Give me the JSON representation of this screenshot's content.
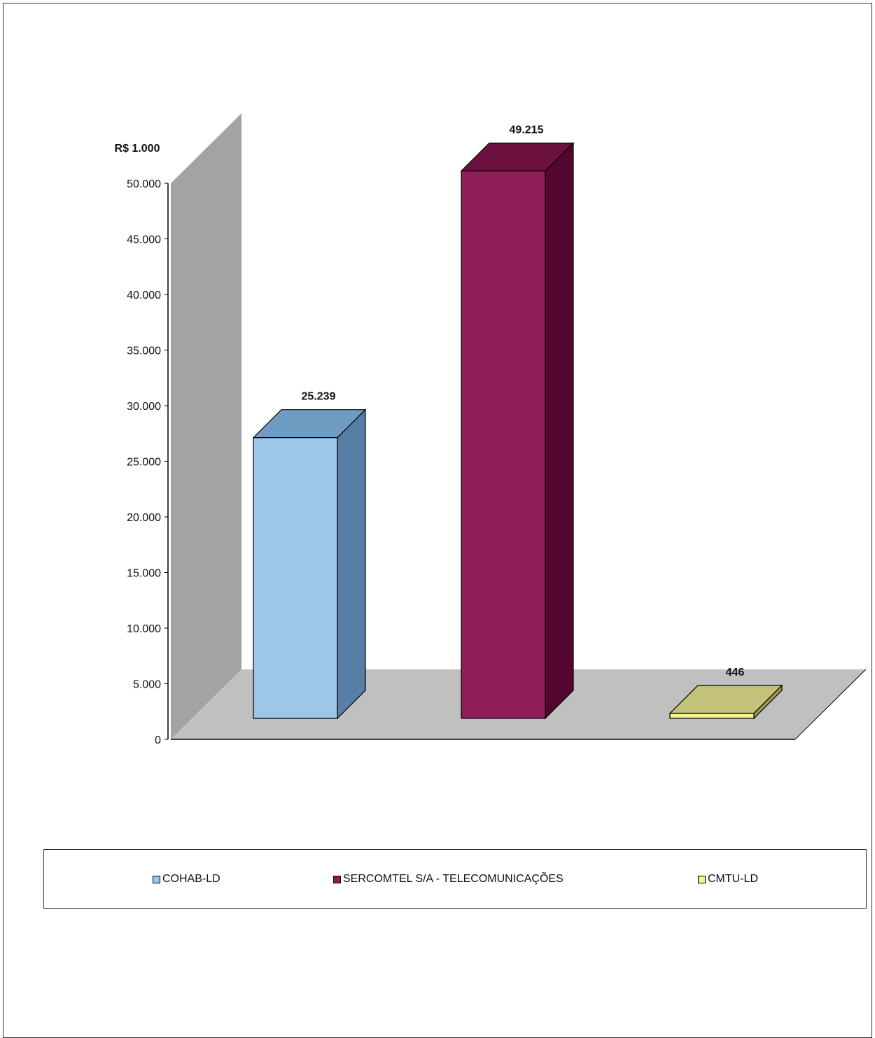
{
  "chart_data": {
    "type": "bar",
    "three_d": true,
    "unit_label": "R$ 1.000",
    "categories": [
      "COHAB-LD",
      "SERCOMTEL S/A - TELECOMUNICAÇÕES",
      "CMTU-LD"
    ],
    "values": [
      25239,
      49215,
      446
    ],
    "value_labels": [
      "25.239",
      "49.215",
      "446"
    ],
    "ylim": [
      0,
      50000
    ],
    "yticks": [
      0,
      5000,
      10000,
      15000,
      20000,
      25000,
      30000,
      35000,
      40000,
      45000,
      50000
    ],
    "ytick_labels": [
      "0",
      "5.000",
      "10.000",
      "15.000",
      "20.000",
      "25.000",
      "30.000",
      "35.000",
      "40.000",
      "45.000",
      "50.000"
    ],
    "grid": false,
    "legend_position": "bottom",
    "colors": {
      "COHAB-LD": {
        "front": "#9DC6E9",
        "top": "#6E9CC2",
        "side": "#577EA5"
      },
      "SERCOMTEL S/A - TELECOMUNICAÇÕES": {
        "front": "#901C58",
        "top": "#6C1040",
        "side": "#540630"
      },
      "CMTU-LD": {
        "front": "#F5F28E",
        "top": "#C4C17A",
        "side": "#9E9B52"
      },
      "wall": "#A3A3A3",
      "floor": "#C0C0C0"
    }
  }
}
